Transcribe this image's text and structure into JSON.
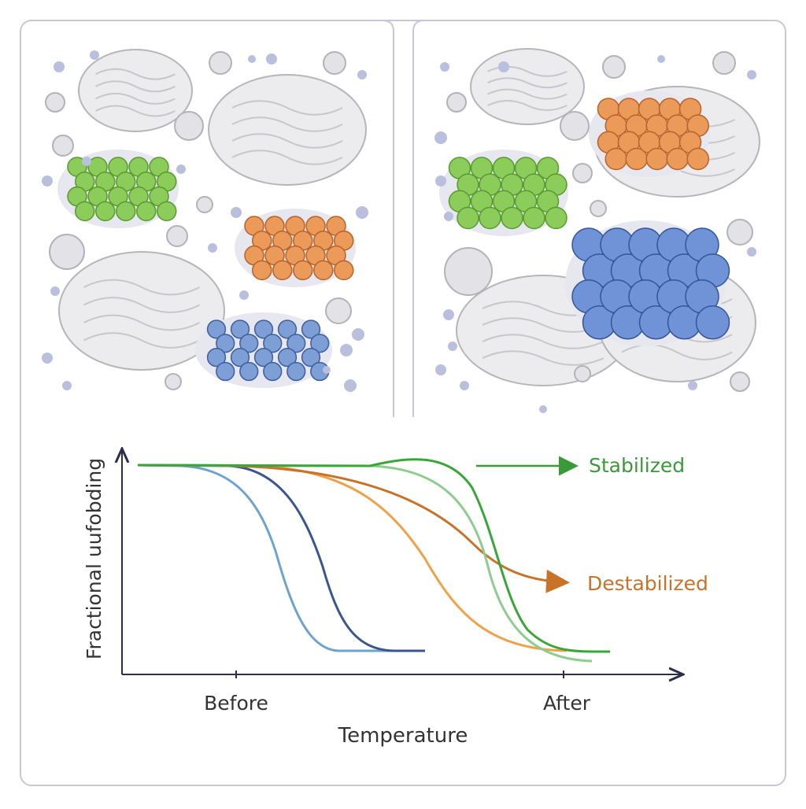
{
  "plot": {
    "y_axis_label": "Fractional uufobding",
    "x_axis_label": "Temperature",
    "x_labels": [
      "Before",
      "After"
    ],
    "annotations": [
      "Stabilized",
      "Destabilized"
    ]
  }
}
